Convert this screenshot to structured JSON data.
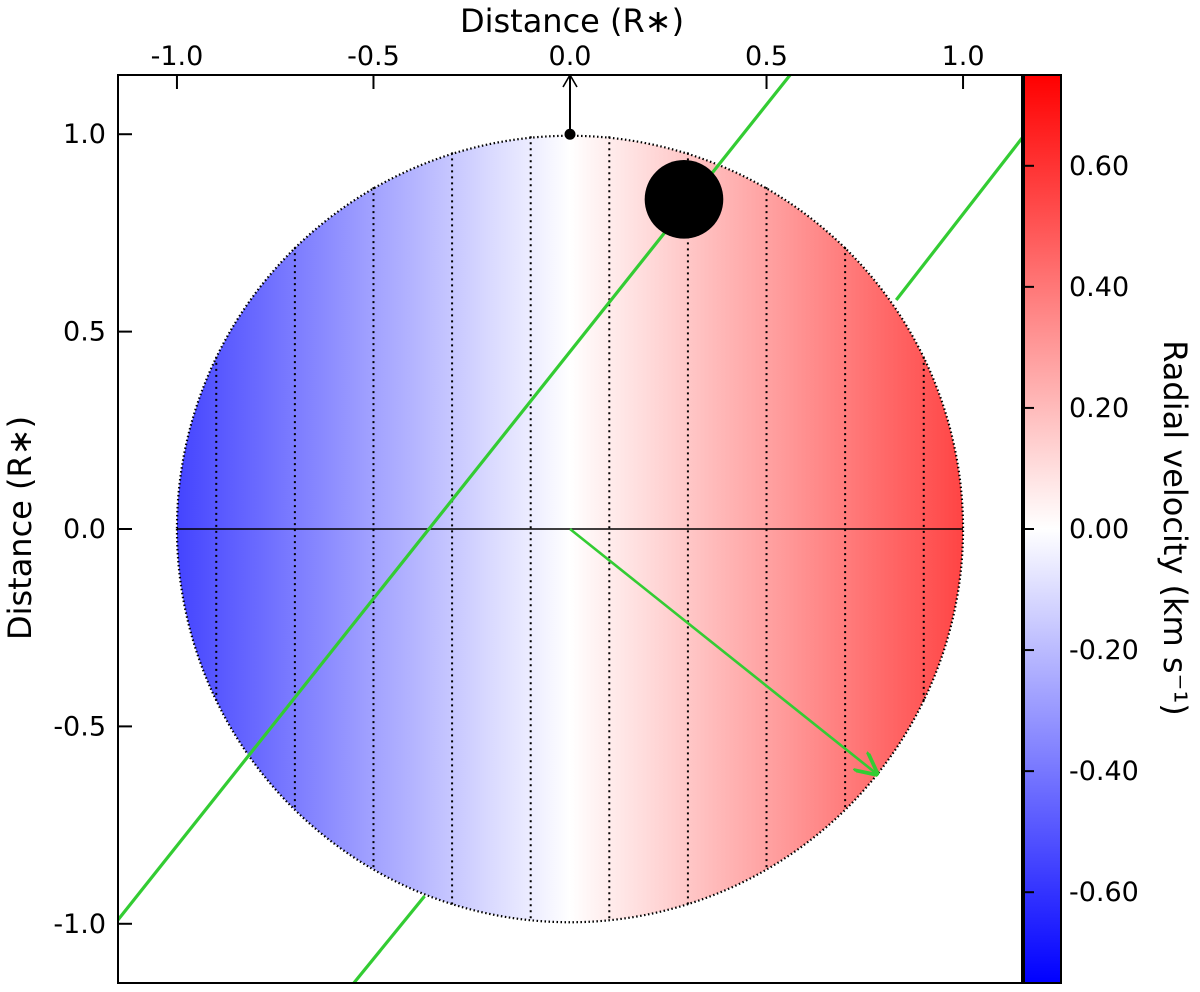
{
  "chart_data": {
    "type": "heatmap",
    "description_free": true,
    "x_axis": {
      "label": "Distance (R∗)",
      "position": "top",
      "ticks": [
        -1.0,
        -0.5,
        0.0,
        0.5,
        1.0
      ],
      "tick_labels": [
        "-1.0",
        "-0.5",
        "0.0",
        "0.5",
        "1.0"
      ],
      "range": [
        -1.15,
        1.15
      ]
    },
    "y_axis": {
      "label": "Distance (R∗)",
      "ticks": [
        1.0,
        0.5,
        0.0,
        -0.5,
        -1.0
      ],
      "tick_labels": [
        "1.0",
        "0.5",
        "0.0",
        "-0.5",
        "-1.0"
      ],
      "range": [
        -1.15,
        1.15
      ]
    },
    "colorbar": {
      "label": "Radial velocity (km s⁻¹)",
      "range": [
        -0.75,
        0.75
      ],
      "ticks": [
        0.6,
        0.4,
        0.2,
        0.0,
        -0.2,
        -0.4,
        -0.6
      ],
      "tick_labels": [
        "0.60",
        "0.40",
        "0.20",
        "0.00",
        "-0.20",
        "-0.40",
        "-0.60"
      ],
      "colormap": "bwr",
      "colors": {
        "negative": "#0000ff",
        "zero": "#ffffff",
        "positive": "#ff0000"
      }
    },
    "stellar_disk": {
      "radius": 1.0,
      "center": [
        0,
        0
      ],
      "velocity_at_limb": 0.55,
      "dotted_isovelocity_x": [
        -0.9,
        -0.7,
        -0.5,
        -0.3,
        -0.1,
        0.1,
        0.3,
        0.5,
        0.7,
        0.9
      ],
      "equator_line": {
        "from": [
          -1.0,
          0.0
        ],
        "to": [
          1.0,
          0.0
        ]
      }
    },
    "planet": {
      "center": [
        0.29,
        0.835
      ],
      "radius": 0.1,
      "color": "#000000"
    },
    "rotation_axis_marker": {
      "from": [
        0.0,
        1.0
      ],
      "to": [
        0.0,
        1.15
      ],
      "dot": [
        0.0,
        1.0
      ]
    },
    "orbital_track_lines": [
      {
        "from": [
          -1.15,
          -0.99
        ],
        "to": [
          0.56,
          1.15
        ],
        "color": "#33cc33"
      },
      {
        "from": [
          0.83,
          0.58
        ],
        "to": [
          1.15,
          0.99
        ],
        "color": "#33cc33"
      },
      {
        "from": [
          -0.55,
          -1.15
        ],
        "to": [
          -0.37,
          -0.93
        ],
        "color": "#33cc33"
      }
    ],
    "spin_vector_arrow": {
      "from": [
        0.0,
        0.0
      ],
      "to": [
        0.78,
        -0.62
      ],
      "color": "#33cc33"
    }
  }
}
